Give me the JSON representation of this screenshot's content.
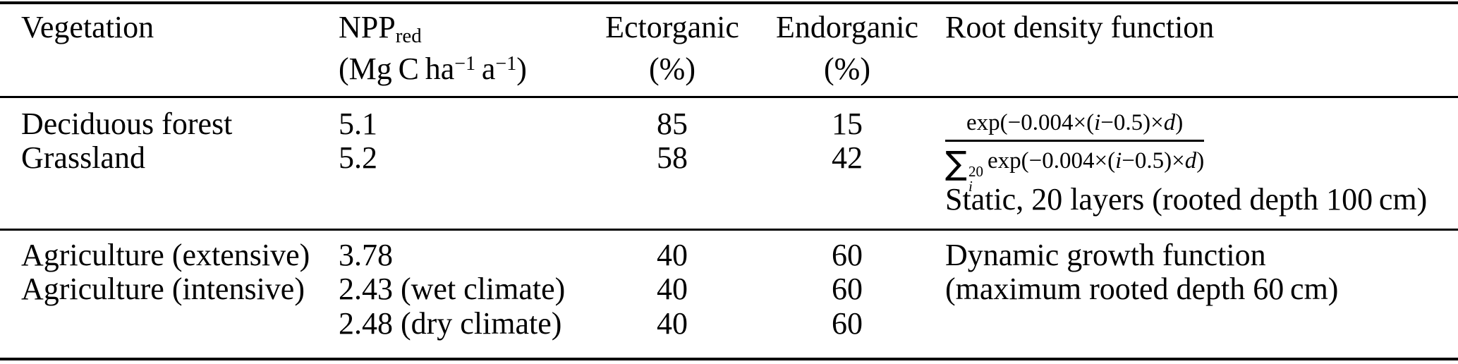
{
  "header": {
    "vegetation": "Vegetation",
    "npp_main": "NPP",
    "npp_sub": "red",
    "npp_units_p1": "(Mg C ha",
    "npp_units_sup1": "−1",
    "npp_units_p2": " a",
    "npp_units_sup2": "−1",
    "npp_units_p3": ")",
    "ectorganic": "Ectorganic",
    "ectorganic_unit": "(%)",
    "endorganic": "Endorganic",
    "endorganic_unit": "(%)",
    "root": "Root density function"
  },
  "rows": [
    {
      "veg": "Deciduous forest",
      "npp": "5.1",
      "ect": "85",
      "end": "15"
    },
    {
      "veg": "Grassland",
      "npp": "5.2",
      "ect": "58",
      "end": "42"
    },
    {
      "veg": "Agriculture (extensive)",
      "npp": "3.78",
      "ect": "40",
      "end": "60"
    },
    {
      "veg": "Agriculture (intensive)",
      "npp": "2.43 (wet climate)",
      "ect": "40",
      "end": "60"
    },
    {
      "veg": "",
      "npp": "2.48 (dry climate)",
      "ect": "40",
      "end": "60"
    }
  ],
  "root_block1": {
    "num_p1": "exp(−0.004×(",
    "num_i": "i",
    "num_p2": "−0.5)×",
    "num_d": "d",
    "num_p3": ")",
    "sum_symbol": "∑",
    "sum_sup": "20",
    "sum_sub": "i",
    "den_p1": "exp(−0.004×(",
    "den_i": "i",
    "den_p2": "−0.5)×",
    "den_d": "d",
    "den_p3": ")",
    "note": "Static, 20 layers (rooted depth 100 cm)"
  },
  "root_block2": {
    "line1": "Dynamic growth function",
    "line2": "(maximum rooted depth 60 cm)"
  }
}
